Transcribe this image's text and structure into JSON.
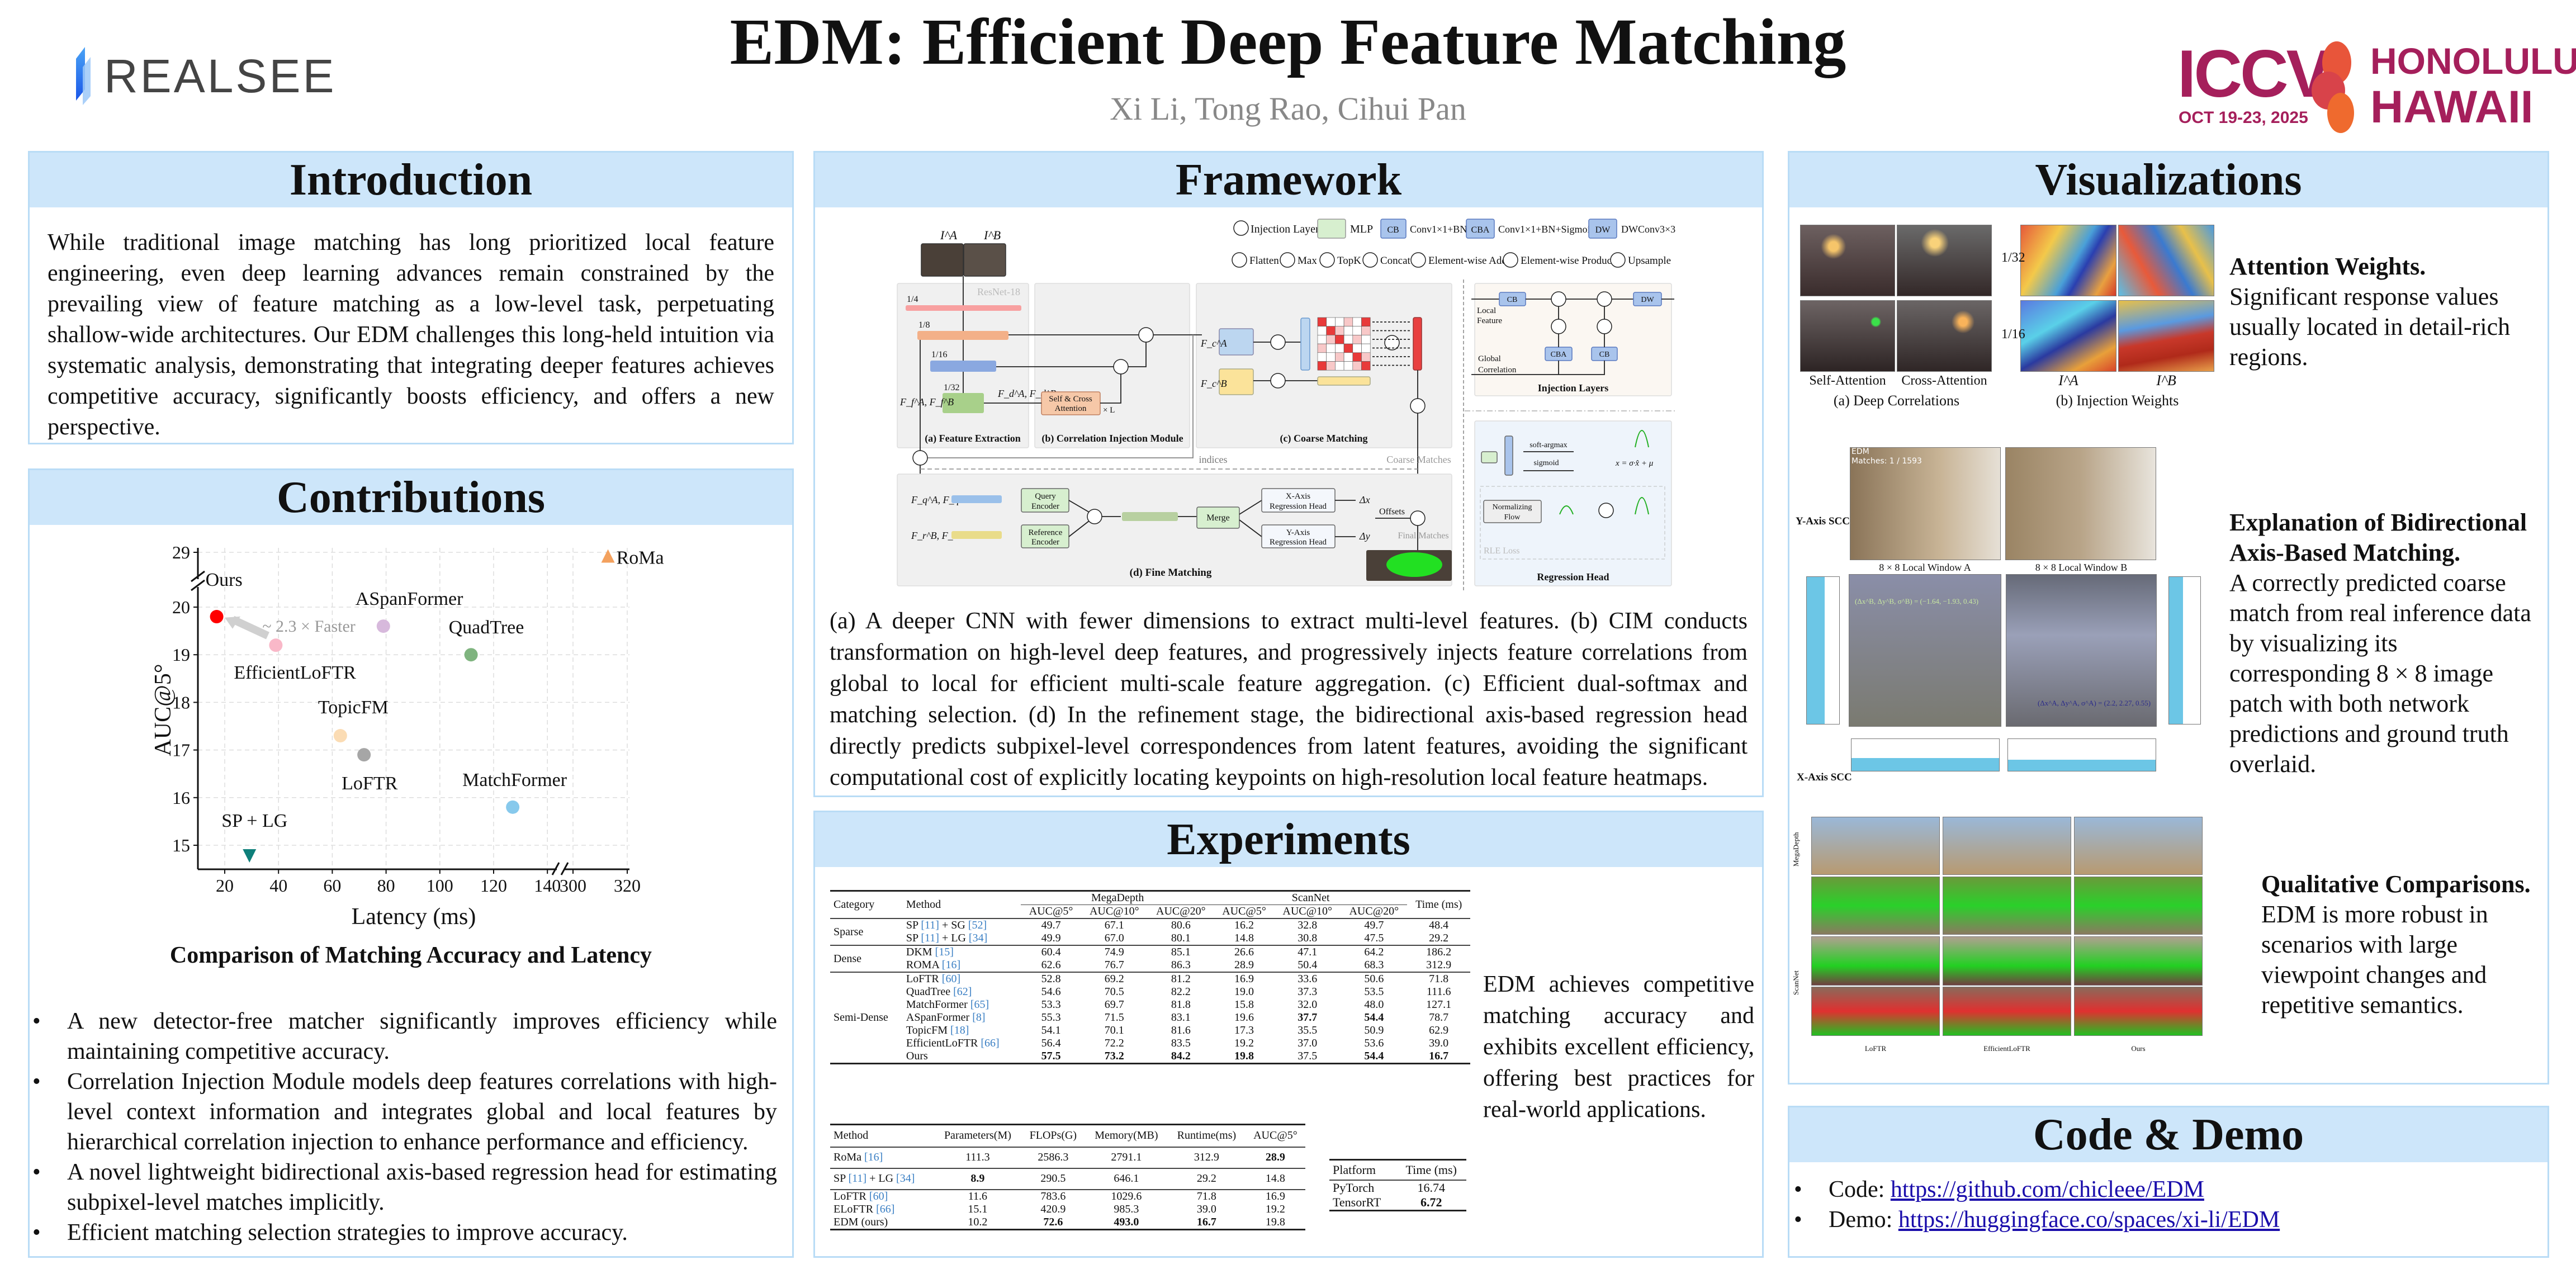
{
  "header": {
    "title": "EDM: Efficient Deep Feature Matching",
    "authors": "Xi Li, Tong Rao, Cihui Pan",
    "left_logo": "REALSEE",
    "right_logo": {
      "name": "ICCV",
      "city": "HONOLULU",
      "state": "HAWAII",
      "dates": "OCT 19-23, 2025"
    }
  },
  "colors": {
    "panel_header": "#cde6fa",
    "panel_border": "#b9dcf6",
    "ours": "#ff0000",
    "ref_link": "#3a7fc4"
  },
  "introduction": {
    "title": "Introduction",
    "text": "While traditional image matching has long prioritized local feature engineering, even deep learning advances remain constrained by the prevailing view of feature matching as a low-level task, perpetuating shallow-wide architectures. Our EDM challenges this long-held intuition via systematic analysis, demonstrating that integrating deeper features achieves competitive accuracy, significantly boosts efficiency, and offers a new perspective."
  },
  "contributions": {
    "title": "Contributions",
    "figure_caption": "Comparison of Matching Accuracy and Latency",
    "bullets": [
      "A new detector-free matcher significantly improves efficiency while maintaining competitive accuracy.",
      "Correlation Injection Module models deep features correlations with high-level context information and integrates global and local features by hierarchical correlation injection to enhance performance and efficiency.",
      "A novel lightweight bidirectional axis-based regression head for estimating subpixel-level matches implicitly.",
      "Efficient matching selection strategies to improve accuracy."
    ]
  },
  "chart_data": {
    "type": "scatter",
    "xlabel": "Latency (ms)",
    "ylabel": "AUC@5°",
    "x_ticks": [
      20,
      40,
      60,
      80,
      100,
      120,
      140,
      300,
      320
    ],
    "y_ticks": [
      15,
      16,
      17,
      18,
      19,
      20,
      29
    ],
    "x_axis_break": [
      140,
      300
    ],
    "y_axis_break": [
      20.5,
      29
    ],
    "xlim": [
      10,
      322
    ],
    "ylim": [
      14.5,
      29.1
    ],
    "grid": true,
    "annotation": "~ 2.3 × Faster",
    "points": [
      {
        "name": "Ours",
        "x": 17,
        "y": 19.8,
        "color": "#ff0000",
        "marker": "circle"
      },
      {
        "name": "EfficientLoFTR",
        "x": 39,
        "y": 19.2,
        "color": "#f9b8c8",
        "marker": "circle"
      },
      {
        "name": "ASpanFormer",
        "x": 79,
        "y": 19.6,
        "color": "#d7b9dc",
        "marker": "circle"
      },
      {
        "name": "QuadTree",
        "x": 111.6,
        "y": 19.0,
        "color": "#7fb47f",
        "marker": "circle"
      },
      {
        "name": "TopicFM",
        "x": 63,
        "y": 17.3,
        "color": "#fbdcb4",
        "marker": "circle"
      },
      {
        "name": "LoFTR",
        "x": 71.8,
        "y": 16.9,
        "color": "#a6a6a6",
        "marker": "circle"
      },
      {
        "name": "MatchFormer",
        "x": 127.1,
        "y": 15.8,
        "color": "#87c9ec",
        "marker": "circle"
      },
      {
        "name": "SP + LG",
        "x": 29.2,
        "y": 14.8,
        "color": "#0e7f7a",
        "marker": "triangle-down"
      },
      {
        "name": "RoMa",
        "x": 312.9,
        "y": 28.9,
        "color": "#f3a15e",
        "marker": "triangle-up"
      }
    ]
  },
  "framework": {
    "title": "Framework",
    "caption": "(a) A deeper CNN with fewer dimensions to extract multi-level features. (b) CIM conducts transformation on high-level deep features, and progressively injects feature correlations from global to local for efficient multi-scale feature aggregation. (c) Efficient dual-softmax and matching selection. (d) In the refinement stage, the bidirectional axis-based regression head directly predicts subpixel-level correspondences from latent features, avoiding the significant computational cost of explicitly locating keypoints on high-resolution local feature heatmaps.",
    "legend": [
      "Injection Layers",
      "MLP",
      "CB",
      "Conv1×1+BN",
      "CBA",
      "Conv1×1+BN+Sigmoid",
      "DW",
      "DWConv3×3",
      "Flatten",
      "Max",
      "TopK",
      "Concat",
      "Element-wise Add",
      "Element-wise Product",
      "Upsample"
    ],
    "labels": {
      "ia": "I^A",
      "ib": "I^B",
      "resnet": "ResNet-18",
      "s4": "1/4",
      "s8": "1/8",
      "s16": "1/16",
      "s32": "1/32",
      "ff": "F_f^A, F_f^B",
      "fd": "F_d^A, F_d^B",
      "attn1": "Self & Cross",
      "attn2": "Attention",
      "xl": "× L",
      "fca": "F_c^A",
      "fcb": "F_c^B",
      "a": "(a) Feature Extraction",
      "b": "(b) Correlation Injection Module",
      "c": "(c) Coarse Matching",
      "d": "(d) Fine Matching",
      "indices": "indices",
      "coarse": "Coarse Matches",
      "fq": "F_q^A, F_q^B",
      "fr": "F_r^B, F_r^A",
      "qe1": "Query",
      "qe2": "Encoder",
      "re1": "Reference",
      "re2": "Encoder",
      "merge": "Merge",
      "xh1": "X-Axis",
      "xh2": "Regression Head",
      "yh1": "Y-Axis",
      "yh2": "Regression Head",
      "dx": "Δx",
      "dy": "Δy",
      "offsets": "Offsets",
      "final": "Final Matches",
      "inj_title": "Injection Layers",
      "local1": "Local",
      "local2": "Feature",
      "glob1": "Global",
      "glob2": "Correlation",
      "reg_title": "Regression Head",
      "softargmax": "soft-argmax",
      "sigmoid": "sigmoid",
      "nf1": "Normalizing",
      "nf2": "Flow",
      "rle": "RLE Loss",
      "formula": "x = σ·x̂ + μ"
    }
  },
  "experiments": {
    "title": "Experiments",
    "side_text": "EDM achieves competitive matching accuracy and exhibits excellent efficiency, offering best practices for real-world applications.",
    "table1": {
      "headers": [
        "Category",
        "Method",
        "MegaDepth",
        "ScanNet",
        "Time (ms)"
      ],
      "sub_headers": [
        "AUC@5°",
        "AUC@10°",
        "AUC@20°",
        "AUC@5°",
        "AUC@10°",
        "AUC@20°"
      ],
      "groups": [
        {
          "category": "Sparse",
          "rows": [
            {
              "method": "SP [11] + SG [52]",
              "values": [
                "49.7",
                "67.1",
                "80.6",
                "16.2",
                "32.8",
                "49.7",
                "48.4"
              ],
              "bold": []
            },
            {
              "method": "SP [11] + LG [34]",
              "values": [
                "49.9",
                "67.0",
                "80.1",
                "14.8",
                "30.8",
                "47.5",
                "29.2"
              ],
              "bold": []
            }
          ]
        },
        {
          "category": "Dense",
          "rows": [
            {
              "method": "DKM [15]",
              "values": [
                "60.4",
                "74.9",
                "85.1",
                "26.6",
                "47.1",
                "64.2",
                "186.2"
              ],
              "bold": []
            },
            {
              "method": "ROMA [16]",
              "values": [
                "62.6",
                "76.7",
                "86.3",
                "28.9",
                "50.4",
                "68.3",
                "312.9"
              ],
              "bold": []
            }
          ]
        },
        {
          "category": "Semi-Dense",
          "rows": [
            {
              "method": "LoFTR [60]",
              "values": [
                "52.8",
                "69.2",
                "81.2",
                "16.9",
                "33.6",
                "50.6",
                "71.8"
              ],
              "bold": []
            },
            {
              "method": "QuadTree [62]",
              "values": [
                "54.6",
                "70.5",
                "82.2",
                "19.0",
                "37.3",
                "53.5",
                "111.6"
              ],
              "bold": []
            },
            {
              "method": "MatchFormer [65]",
              "values": [
                "53.3",
                "69.7",
                "81.8",
                "15.8",
                "32.0",
                "48.0",
                "127.1"
              ],
              "bold": []
            },
            {
              "method": "ASpanFormer [8]",
              "values": [
                "55.3",
                "71.5",
                "83.1",
                "19.6",
                "37.7",
                "54.4",
                "78.7"
              ],
              "bold": [
                4,
                5
              ]
            },
            {
              "method": "TopicFM [18]",
              "values": [
                "54.1",
                "70.1",
                "81.6",
                "17.3",
                "35.5",
                "50.9",
                "62.9"
              ],
              "bold": []
            },
            {
              "method": "EfficientLoFTR [66]",
              "values": [
                "56.4",
                "72.2",
                "83.5",
                "19.2",
                "37.0",
                "53.6",
                "39.0"
              ],
              "bold": []
            },
            {
              "method": "Ours",
              "values": [
                "57.5",
                "73.2",
                "84.2",
                "19.8",
                "37.5",
                "54.4",
                "16.7"
              ],
              "bold": [
                0,
                1,
                2,
                3,
                5,
                6
              ]
            }
          ]
        }
      ]
    },
    "table2": {
      "headers": [
        "Method",
        "Parameters(M)",
        "FLOPs(G)",
        "Memory(MB)",
        "Runtime(ms)",
        "AUC@5°"
      ],
      "groups": [
        [
          {
            "method": "RoMa [16]",
            "values": [
              "111.3",
              "2586.3",
              "2791.1",
              "312.9",
              "28.9"
            ],
            "bold": [
              4
            ]
          }
        ],
        [
          {
            "method": "SP [11] + LG [34]",
            "values": [
              "8.9",
              "290.5",
              "646.1",
              "29.2",
              "14.8"
            ],
            "bold": [
              0
            ]
          }
        ],
        [
          {
            "method": "LoFTR [60]",
            "values": [
              "11.6",
              "783.6",
              "1029.6",
              "71.8",
              "16.9"
            ],
            "bold": []
          },
          {
            "method": "ELoFTR [66]",
            "values": [
              "15.1",
              "420.9",
              "985.3",
              "39.0",
              "19.2"
            ],
            "bold": []
          },
          {
            "method": "EDM (ours)",
            "values": [
              "10.2",
              "72.6",
              "493.0",
              "16.7",
              "19.8"
            ],
            "bold": [
              1,
              2,
              3
            ]
          }
        ]
      ]
    },
    "table3": {
      "headers": [
        "Platform",
        "Time (ms)"
      ],
      "rows": [
        {
          "method": "PyTorch",
          "values": [
            "16.74"
          ],
          "bold": []
        },
        {
          "method": "TensorRT",
          "values": [
            "6.72"
          ],
          "bold": [
            0
          ]
        }
      ]
    }
  },
  "visualizations": {
    "title": "Visualizations",
    "items": [
      {
        "heading": "Attention Weights.",
        "text": "Significant response values usually located in detail-rich regions."
      },
      {
        "heading": "Explanation of Bidirectional Axis-Based Matching.",
        "text": "A correctly predicted coarse match from real inference data by visualizing its corresponding 8 × 8 image patch with both network predictions and ground truth overlaid."
      },
      {
        "heading": "Qualitative Comparisons.",
        "text": "EDM is more robust in scenarios with large viewpoint changes and repetitive semantics."
      }
    ],
    "fig1": {
      "self": "Self-Attention",
      "cross": "Cross-Attention",
      "cap_a": "(a) Deep Correlations",
      "cap_b": "(b) Injection Weights",
      "s32": "1/32",
      "s16": "1/16",
      "ia": "I^A",
      "ib": "I^B"
    },
    "fig2": {
      "overlay1": "EDM",
      "overlay2": "Matches: 1 / 1593",
      "win_a": "8 × 8 Local Window A",
      "win_b": "8 × 8 Local Window B",
      "yscc": "Y-Axis SCC",
      "xscc": "X-Axis SCC",
      "tuple_b": "(Δx^B, Δy^B, σ^B) = (−1.64, −1.93, 0.43)",
      "tuple_a": "(Δx^A, Δy^A, σ^A) = (2.2, 2.27, 0.55)"
    },
    "fig3": {
      "row1": "MegaDepth",
      "row2": "ScanNet",
      "col1": "LoFTR",
      "col2": "EfficientLoFTR",
      "col3": "Ours"
    }
  },
  "code": {
    "title": "Code & Demo",
    "items": [
      {
        "label": "Code: ",
        "link": "https://github.com/chicleee/EDM"
      },
      {
        "label": "Demo: ",
        "link": "https://huggingface.co/spaces/xi-li/EDM"
      }
    ]
  }
}
